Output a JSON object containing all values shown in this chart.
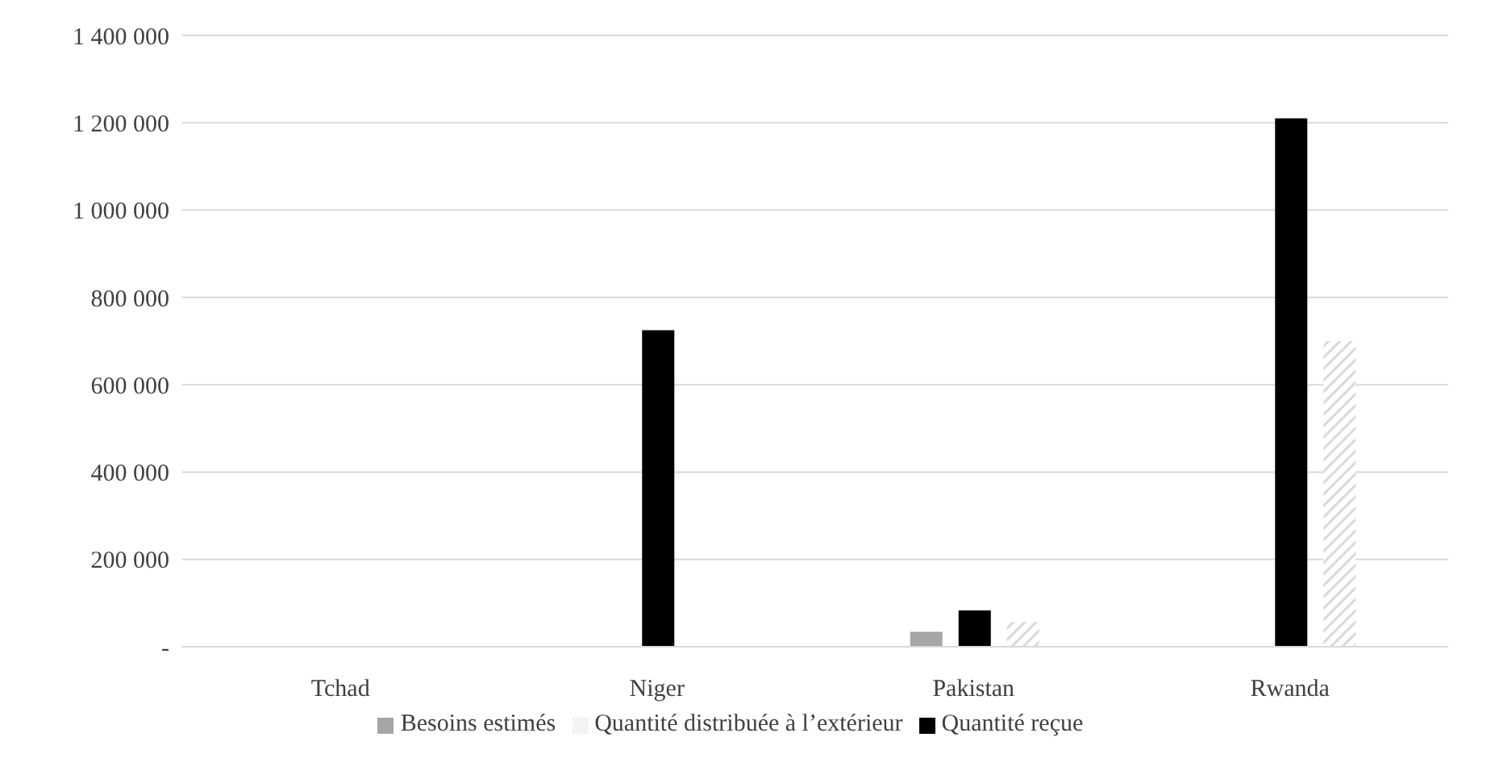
{
  "chart_data": {
    "type": "bar",
    "categories": [
      "Tchad",
      "Niger",
      "Pakistan",
      "Rwanda"
    ],
    "series": [
      {
        "name": "Besoins estimés",
        "color": "#a6a6a6",
        "values": [
          0,
          0,
          34000,
          0
        ]
      },
      {
        "name": "Quantité reçue",
        "color": "#000000",
        "values": [
          0,
          725000,
          83000,
          1210000
        ]
      },
      {
        "name": "Quantité distribuée à l’extérieur",
        "color": "#d9d9d9",
        "values": [
          0,
          0,
          57000,
          700000
        ]
      }
    ],
    "ylim": [
      0,
      1400000
    ],
    "yticks": [
      {
        "value": 0,
        "label": "-"
      },
      {
        "value": 200000,
        "label": "200 000"
      },
      {
        "value": 400000,
        "label": "400 000"
      },
      {
        "value": 600000,
        "label": "600 000"
      },
      {
        "value": 800000,
        "label": "800 000"
      },
      {
        "value": 1000000,
        "label": "1 000 000"
      },
      {
        "value": 1200000,
        "label": "1 200 000"
      },
      {
        "value": 1400000,
        "label": "1 400 000"
      }
    ],
    "grid": "y",
    "legend": "bottom"
  }
}
